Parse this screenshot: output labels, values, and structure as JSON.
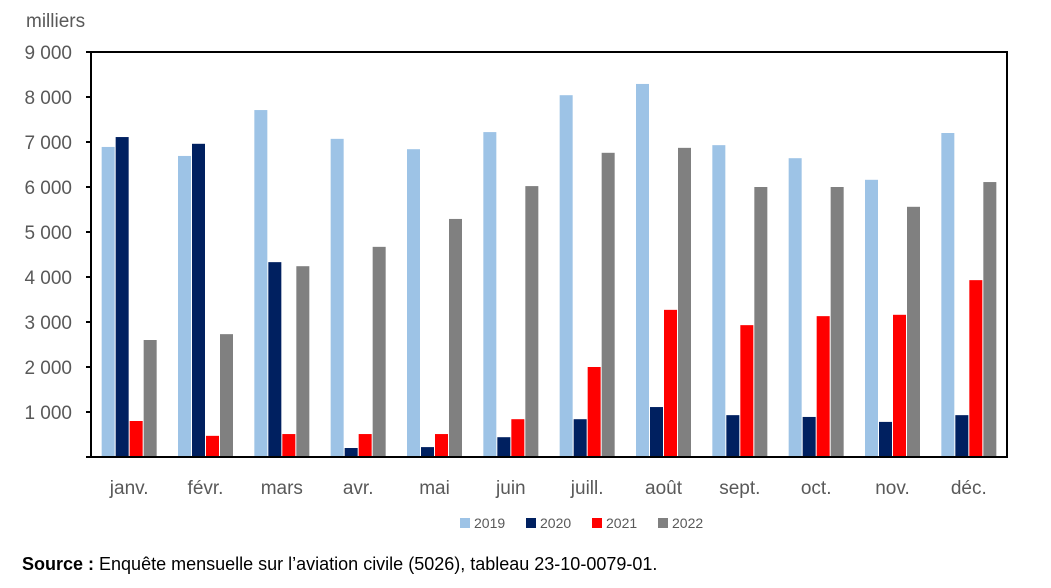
{
  "chart_data": {
    "type": "bar",
    "ylabel": "milliers",
    "ylim": [
      0,
      9000
    ],
    "yticks": [
      "",
      "1 000",
      "2 000",
      "3 000",
      "4 000",
      "5 000",
      "6 000",
      "7 000",
      "8 000",
      "9 000"
    ],
    "categories": [
      "janv.",
      "févr.",
      "mars",
      "avr.",
      "mai",
      "juin",
      "juill.",
      "août",
      "sept.",
      "oct.",
      "nov.",
      "déc."
    ],
    "legend_position": "bottom",
    "grid": false,
    "series": [
      {
        "name": "2019",
        "color": "#9DC3E6",
        "values": [
          6890,
          6690,
          7710,
          7070,
          6840,
          7220,
          8040,
          8290,
          6930,
          6640,
          6160,
          7200
        ]
      },
      {
        "name": "2020",
        "color": "#002060",
        "values": [
          7110,
          6960,
          4330,
          200,
          220,
          440,
          840,
          1110,
          930,
          890,
          780,
          930
        ]
      },
      {
        "name": "2021",
        "color": "#FF0000",
        "values": [
          800,
          470,
          510,
          510,
          510,
          840,
          2000,
          3270,
          2930,
          3130,
          3160,
          3930
        ]
      },
      {
        "name": "2022",
        "color": "#808080",
        "values": [
          2600,
          2730,
          4240,
          4670,
          5290,
          6020,
          6760,
          6870,
          6000,
          6000,
          5560,
          6110
        ]
      }
    ]
  },
  "source": {
    "label": "Source :",
    "text": " Enquête mensuelle sur l’aviation civile (5026), tableau 23-10-0079-01."
  }
}
